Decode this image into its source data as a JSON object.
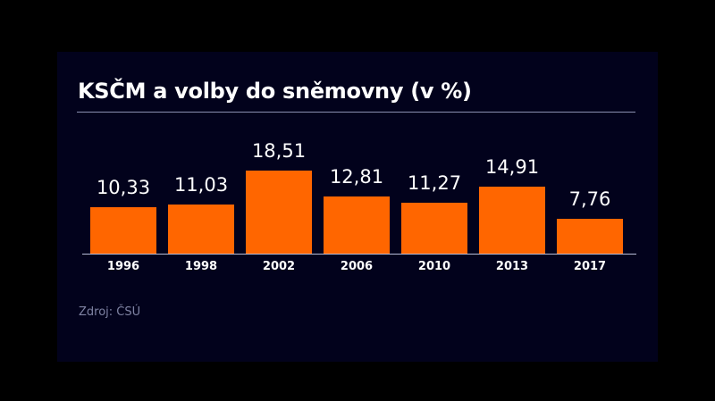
{
  "chart_data": {
    "type": "bar",
    "title": "KSČM a volby do sněmovny (v %)",
    "categories": [
      "1996",
      "1998",
      "2002",
      "2006",
      "2010",
      "2013",
      "2017"
    ],
    "values": [
      10.33,
      11.03,
      18.51,
      12.81,
      11.27,
      14.91,
      7.76
    ],
    "value_labels": [
      "10,33",
      "11,03",
      "18,51",
      "12,81",
      "11,27",
      "14,91",
      "7,76"
    ],
    "xlabel": "",
    "ylabel": "",
    "ylim": [
      0,
      20
    ],
    "grid": false,
    "legend": null,
    "colors": {
      "bar": "#ff6600",
      "background": "#02021c",
      "text": "#ffffff"
    },
    "source": "Zdroj: ČSÚ"
  }
}
